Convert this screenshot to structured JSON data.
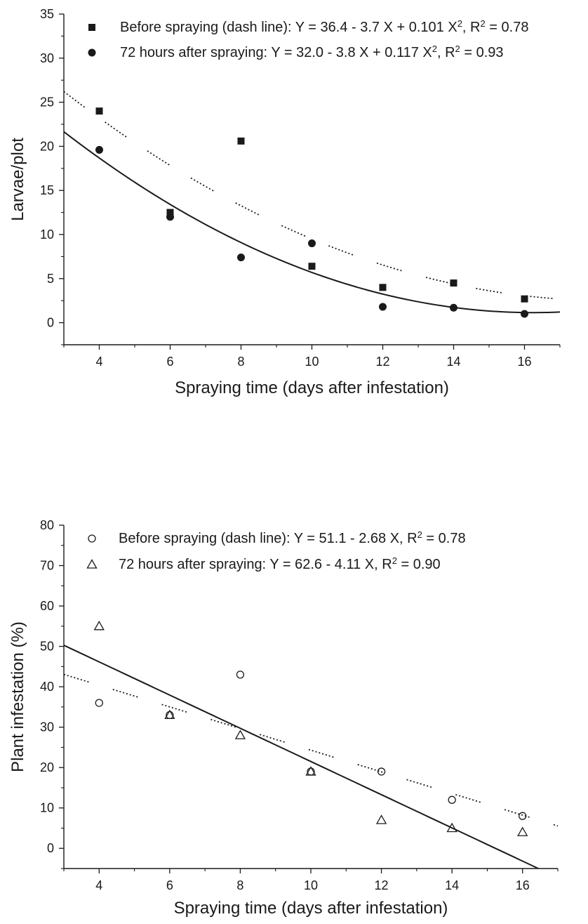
{
  "chart_data": [
    {
      "type": "scatter",
      "xlabel": "Spraying time (days after infestation)",
      "ylabel": "Larvae/plot",
      "xlim": [
        3,
        17
      ],
      "ylim": [
        -2.5,
        35
      ],
      "xticks": [
        4,
        6,
        8,
        10,
        12,
        14,
        16
      ],
      "yticks": [
        0,
        5,
        10,
        15,
        20,
        25,
        30,
        35
      ],
      "legend_position": "top",
      "grid": false,
      "series": [
        {
          "legend": {
            "prefix": "Before spraying (dash line): Y = 36.4 - 3.7 X + 0.101 X",
            "sup": "2",
            "mid": ", R",
            "sup2": "2",
            "suffix": " = 0.78"
          },
          "marker": "filled-square",
          "line": "dash",
          "fit": {
            "kind": "quadratic",
            "coef": [
              36.4,
              -3.7,
              0.101
            ]
          },
          "x": [
            4,
            6,
            8,
            10,
            12,
            14,
            16
          ],
          "y": [
            24.0,
            12.5,
            20.6,
            6.4,
            4.0,
            4.5,
            2.7
          ]
        },
        {
          "legend": {
            "prefix": "72 hours after spraying: Y = 32.0 - 3.8 X + 0.117 X",
            "sup": "2",
            "mid": ", R",
            "sup2": "2",
            "suffix": " = 0.93"
          },
          "marker": "filled-circle",
          "line": "solid",
          "fit": {
            "kind": "quadratic",
            "coef": [
              32.0,
              -3.8,
              0.117
            ]
          },
          "x": [
            4,
            6,
            8,
            10,
            12,
            14,
            16
          ],
          "y": [
            19.6,
            12.0,
            7.4,
            9.0,
            1.8,
            1.7,
            1.0
          ]
        }
      ]
    },
    {
      "type": "scatter",
      "xlabel": "Spraying time (days after infestation)",
      "ylabel": "Plant infestation (%)",
      "xlim": [
        3,
        17
      ],
      "ylim": [
        -5,
        80
      ],
      "xticks": [
        4,
        6,
        8,
        10,
        12,
        14,
        16
      ],
      "yticks": [
        0,
        10,
        20,
        30,
        40,
        50,
        60,
        70,
        80
      ],
      "legend_position": "top",
      "grid": false,
      "series": [
        {
          "legend": {
            "prefix": "Before spraying (dash line):  Y  = 51.1 - 2.68 X,  R",
            "sup": "2",
            "mid": "",
            "sup2": "",
            "suffix": " = 0.78"
          },
          "marker": "open-circle",
          "line": "dash",
          "fit": {
            "kind": "linear",
            "coef": [
              51.1,
              -2.68
            ]
          },
          "x": [
            4,
            6,
            8,
            10,
            12,
            14,
            16
          ],
          "y": [
            36.0,
            33.0,
            43.0,
            19.0,
            19.0,
            12.0,
            8.0
          ]
        },
        {
          "legend": {
            "prefix": "72 hours after spraying: Y  = 62.6 - 4.11 X,  R",
            "sup": "2",
            "mid": "",
            "sup2": "",
            "suffix": " = 0.90"
          },
          "marker": "open-triangle",
          "line": "solid",
          "fit": {
            "kind": "linear",
            "coef": [
              62.6,
              -4.11
            ]
          },
          "x": [
            4,
            6,
            8,
            10,
            12,
            14,
            16
          ],
          "y": [
            55.0,
            33.0,
            28.0,
            19.0,
            7.0,
            5.0,
            4.0
          ]
        }
      ]
    }
  ]
}
